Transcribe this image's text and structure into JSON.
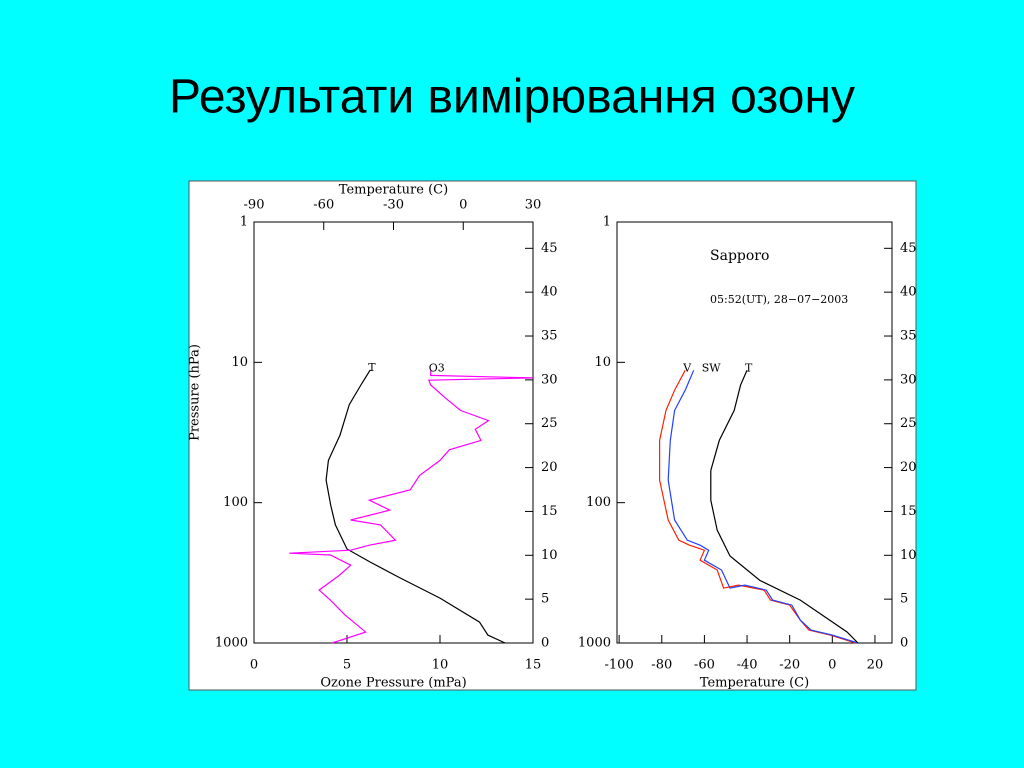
{
  "slide": {
    "title": "Результати вимірювання озону"
  },
  "chart_data": [
    {
      "type": "line",
      "x2label": "Temperature (C)",
      "xlabel": "Ozone Pressure (mPa)",
      "ylabel": "Pressure (hPa)",
      "xlim": [
        0,
        15
      ],
      "xticks": [
        0,
        5,
        10,
        15
      ],
      "x2lim": [
        -90,
        30
      ],
      "x2ticks": [
        -90,
        -60,
        -30,
        0,
        30
      ],
      "yscale": "log",
      "ylim": [
        1000,
        1
      ],
      "yticks": [
        1,
        10,
        100,
        1000
      ],
      "y2lim": [
        0,
        48
      ],
      "y2ticks": [
        0,
        5,
        10,
        15,
        20,
        25,
        30,
        35,
        40,
        45
      ],
      "series": [
        {
          "name": "T",
          "color": "#000000",
          "xaxis": "x2",
          "x": [
            18,
            10.6,
            7,
            -10,
            -27,
            -40,
            -50,
            -55,
            -57,
            -59,
            -58,
            -53,
            -49,
            -44,
            -40
          ],
          "values": [
            1000,
            879,
            710,
            479,
            345,
            265,
            214,
            144,
            104,
            69,
            50,
            33,
            20,
            14.5,
            11.3
          ]
        },
        {
          "name": "O3",
          "color": "#ff00ff",
          "x": [
            4.2,
            6.0,
            4.9,
            4.1,
            3.5,
            4.6,
            5.2,
            4.1,
            1.9,
            5.2,
            6.2,
            7.6,
            6.8,
            5.2,
            7.3,
            6.2,
            8.4,
            8.9,
            10.0,
            10.5,
            12.2,
            11.9,
            12.6,
            11.1,
            10.3,
            9.5,
            9.4,
            15,
            9.5,
            9.5
          ],
          "values": [
            1000,
            836,
            633,
            495,
            420,
            328,
            279,
            236,
            229,
            218,
            201,
            185,
            144,
            133,
            113,
            96,
            81,
            64,
            50,
            42,
            36,
            30,
            26,
            22,
            18,
            14.5,
            13.4,
            12.9,
            12.4,
            11.4
          ]
        }
      ]
    },
    {
      "type": "line",
      "xlabel": "Temperature (C)",
      "xlim": [
        -101,
        28
      ],
      "xticks": [
        -100,
        -80,
        -60,
        -40,
        -20,
        0,
        20
      ],
      "yscale": "log",
      "ylim": [
        1000,
        1
      ],
      "yticks": [
        1,
        10,
        100,
        1000
      ],
      "y2lim": [
        0,
        48
      ],
      "y2ticks": [
        0,
        5,
        10,
        15,
        20,
        25,
        30,
        35,
        40,
        45
      ],
      "annotations": [
        "Sapporo",
        "05:52(UT), 28−07−2003"
      ],
      "series": [
        {
          "name": "V",
          "color": "#ff2000",
          "x": [
            11,
            -1,
            -11,
            -15,
            -20,
            -29,
            -32,
            -44,
            -51,
            -54,
            -62,
            -60,
            -67,
            -72,
            -77,
            -81,
            -81,
            -78,
            -74,
            -69
          ],
          "values": [
            1000,
            879,
            809,
            687,
            537,
            495,
            420,
            387,
            406,
            302,
            257,
            218,
            201,
            185,
            133,
            69,
            36,
            22,
            15.8,
            11.4
          ]
        },
        {
          "name": "SW",
          "color": "#2040ff",
          "x": [
            12,
            0,
            -10,
            -15,
            -19,
            -28,
            -31,
            -41,
            -48,
            -52,
            -60,
            -58,
            -62,
            -68,
            -74,
            -77,
            -76,
            -74,
            -69,
            -65
          ],
          "values": [
            1000,
            879,
            809,
            687,
            537,
            495,
            420,
            387,
            406,
            302,
            257,
            218,
            201,
            185,
            133,
            69,
            36,
            22,
            15.8,
            11.4
          ]
        },
        {
          "name": "T",
          "color": "#000000",
          "x": [
            12,
            7,
            -15,
            -34,
            -48,
            -54,
            -57,
            -57,
            -53,
            -46,
            -43,
            -40
          ],
          "values": [
            1000,
            836,
            495,
            358,
            240,
            157,
            96,
            59,
            36,
            22,
            14.5,
            11.4
          ]
        }
      ]
    }
  ]
}
